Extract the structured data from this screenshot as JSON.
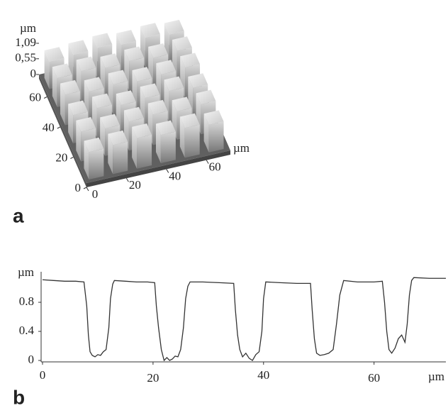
{
  "chart_data": [
    {
      "type": "surface3d",
      "panel_label": "a",
      "xlim": [
        0,
        72
      ],
      "ylim": [
        0,
        72
      ],
      "zlim": [
        0,
        1.09
      ],
      "xticks": [
        0,
        20,
        40,
        60
      ],
      "yticks": [
        0,
        20,
        40,
        60
      ],
      "zticks": [
        {
          "value": 1.09,
          "label": "1,09"
        },
        {
          "value": 0.55,
          "label": "0,55"
        },
        0
      ],
      "xlabel": "µm",
      "zlabel": "µm"
    },
    {
      "type": "line",
      "panel_label": "b",
      "color": "#333333",
      "x": [
        0,
        2,
        4,
        6,
        7.5,
        8,
        8.3,
        8.6,
        9,
        9.5,
        10,
        10.5,
        11,
        11.5,
        12,
        12.3,
        12.7,
        13,
        15,
        17,
        19,
        20.3,
        20.6,
        21,
        21.5,
        22,
        22.5,
        23,
        23.5,
        24,
        24.5,
        25,
        25.5,
        25.9,
        26.3,
        26.7,
        29,
        32,
        34.6,
        34.9,
        35.3,
        35.7,
        36.2,
        36.8,
        37.4,
        38,
        38.6,
        39.2,
        39.7,
        40,
        40.4,
        43,
        46,
        48.5,
        48.8,
        49.2,
        49.6,
        50.2,
        51,
        51.8,
        52.6,
        53.2,
        53.8,
        54.5,
        57,
        60,
        61.5,
        61.9,
        62.3,
        62.7,
        63.2,
        63.8,
        64.4,
        65,
        65.6,
        66,
        66.4,
        66.8,
        67.2,
        70,
        73
      ],
      "values": [
        1.11,
        1.1,
        1.09,
        1.09,
        1.08,
        0.75,
        0.35,
        0.12,
        0.07,
        0.05,
        0.08,
        0.07,
        0.12,
        0.15,
        0.45,
        0.85,
        1.05,
        1.1,
        1.09,
        1.08,
        1.08,
        1.07,
        0.75,
        0.45,
        0.15,
        0.0,
        0.04,
        0.0,
        0.02,
        0.06,
        0.05,
        0.15,
        0.45,
        0.85,
        1.02,
        1.08,
        1.08,
        1.07,
        1.06,
        0.7,
        0.35,
        0.15,
        0.05,
        0.1,
        0.03,
        0.0,
        0.08,
        0.12,
        0.4,
        0.85,
        1.08,
        1.07,
        1.06,
        1.06,
        0.7,
        0.3,
        0.1,
        0.07,
        0.08,
        0.1,
        0.15,
        0.5,
        0.9,
        1.1,
        1.08,
        1.08,
        1.09,
        0.8,
        0.4,
        0.15,
        0.1,
        0.17,
        0.3,
        0.35,
        0.25,
        0.5,
        0.9,
        1.1,
        1.14,
        1.13,
        1.13
      ],
      "xlim": [
        0,
        73
      ],
      "ylim": [
        0,
        1.22
      ],
      "xticks": [
        0,
        20,
        40,
        60
      ],
      "yticks": [
        0,
        0.4,
        0.8
      ],
      "xlabel": "µm",
      "ylabel": "µm"
    }
  ]
}
